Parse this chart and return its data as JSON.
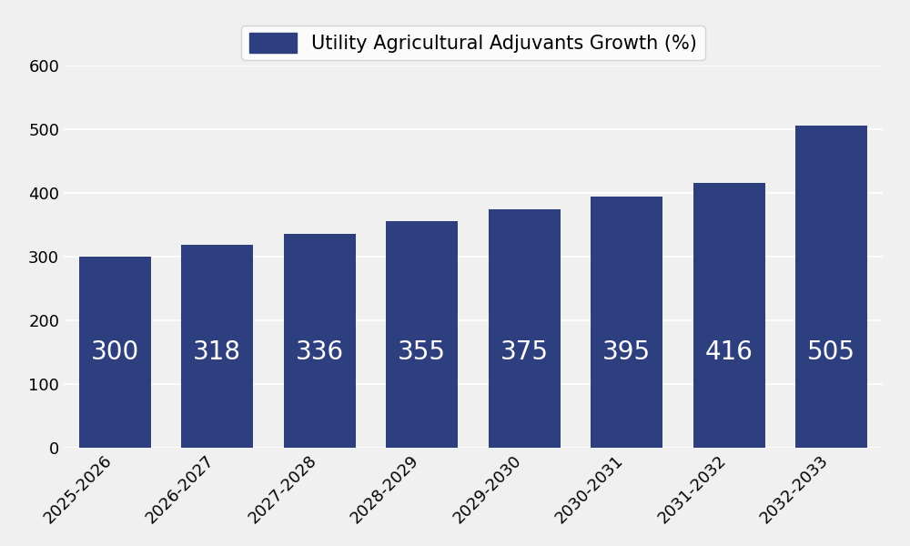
{
  "categories": [
    "2025-2026",
    "2026-2027",
    "2027-2028",
    "2028-2029",
    "2029-2030",
    "2030-2031",
    "2031-2032",
    "2032-2033"
  ],
  "values": [
    300,
    318,
    336,
    355,
    375,
    395,
    416,
    505
  ],
  "bar_color": "#2E3F7F",
  "legend_label": "Utility Agricultural Adjuvants Growth (%)",
  "ylim": [
    0,
    600
  ],
  "yticks": [
    0,
    100,
    200,
    300,
    400,
    500,
    600
  ],
  "background_color": "#F0F0F0",
  "label_color": "#FFFFFF",
  "label_fontsize": 20,
  "tick_fontsize": 13,
  "legend_fontsize": 15,
  "grid_color": "#FFFFFF",
  "bar_width": 0.7
}
